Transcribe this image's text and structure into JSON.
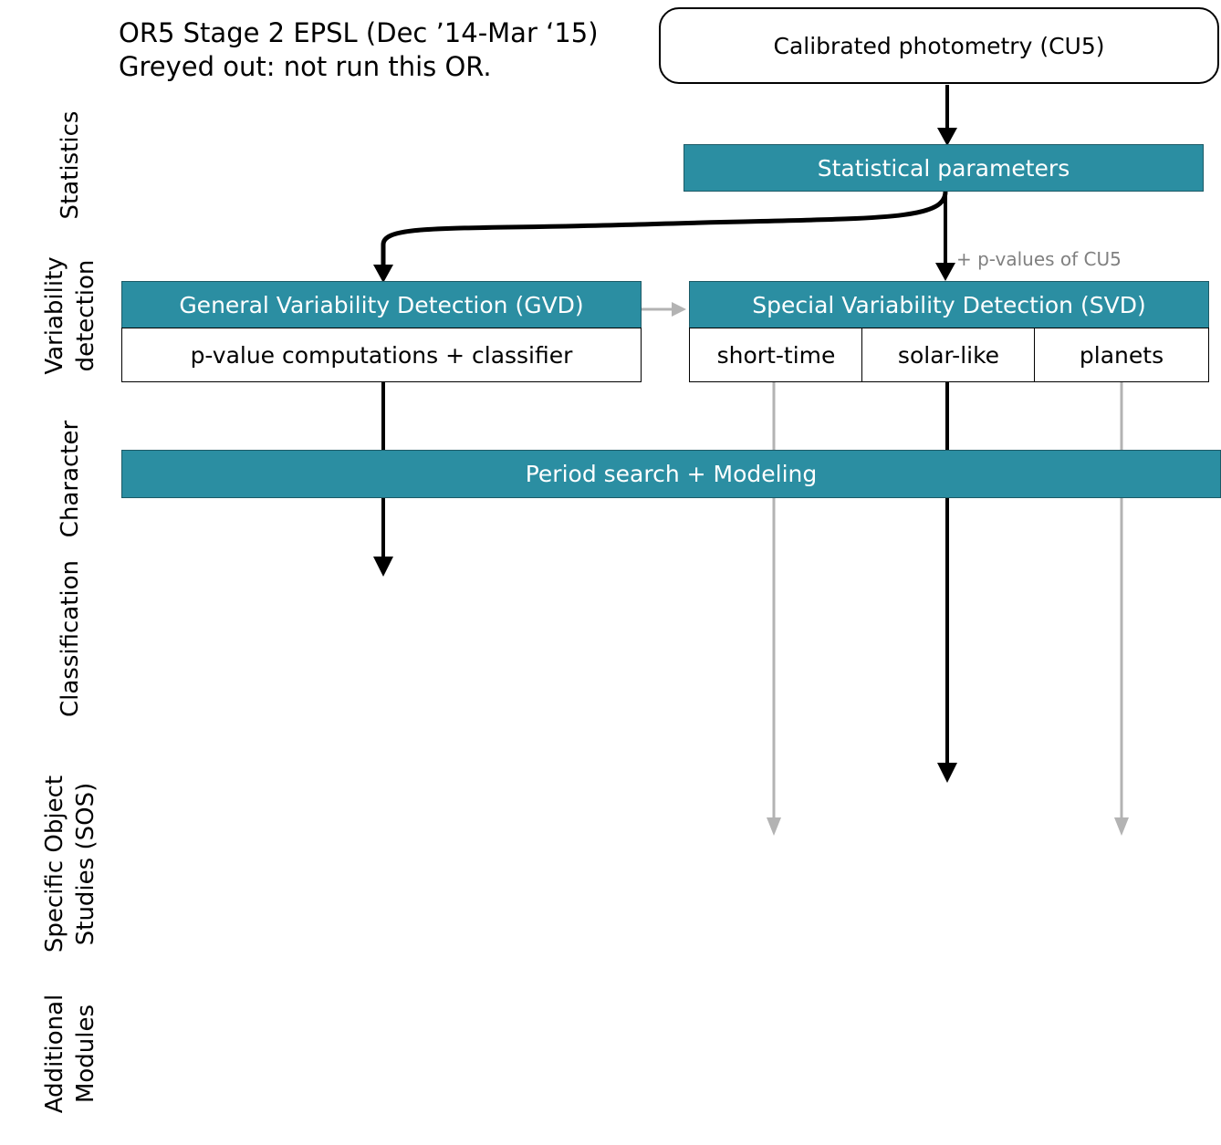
{
  "header": {
    "line1": "OR5 Stage 2 EPSL (Dec ’14-Mar ‘15)",
    "line2": "Greyed out: not run this OR."
  },
  "stages": [
    {
      "line1": "Statistics"
    },
    {
      "line1": "Variability",
      "line2": "detection"
    },
    {
      "line1": "Character"
    },
    {
      "line1": "Classification"
    },
    {
      "line1": "Specific Object",
      "line2": "Studies (SOS)"
    },
    {
      "line1": "Additional",
      "line2": "Modules"
    }
  ],
  "nodes": {
    "input": "Calibrated photometry (CU5)",
    "statistical_parameters": "Statistical parameters",
    "gvd": "General Variability Detection (GVD)",
    "gvd_sub": "p-value computations + classifier",
    "svd": "Special Variability Detection (SVD)",
    "svd_sub": [
      "short-time",
      "solar-like",
      "planets"
    ],
    "period_search": "Period search + Modeling"
  },
  "annotations": {
    "pvalues": "+ p-values of CU5"
  },
  "colors": {
    "teal": "#2b8ea2",
    "active_arrow": "#000000",
    "inactive_arrow": "#b3b3b3"
  }
}
